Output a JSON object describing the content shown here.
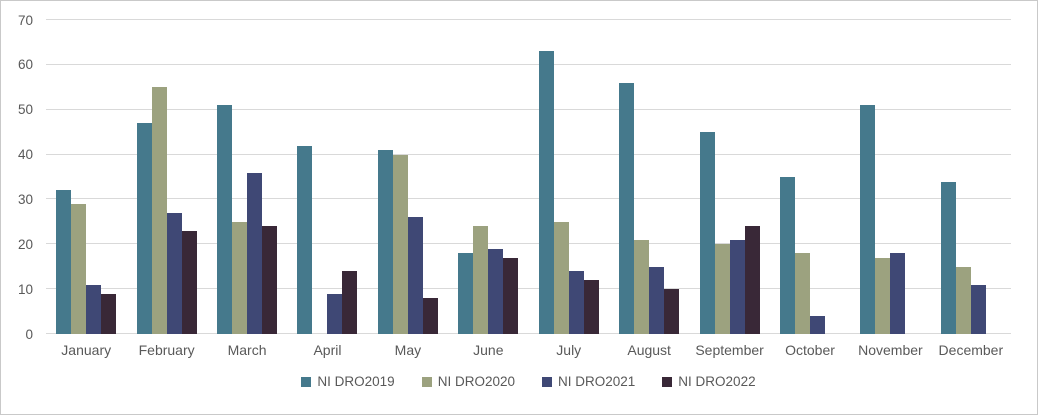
{
  "chart_data": {
    "type": "bar",
    "title": "",
    "xlabel": "",
    "ylabel": "",
    "categories": [
      "January",
      "February",
      "March",
      "April",
      "May",
      "June",
      "July",
      "August",
      "September",
      "October",
      "November",
      "December"
    ],
    "series": [
      {
        "name": "NI DRO2019",
        "color": "#45798C",
        "values": [
          32,
          47,
          51,
          42,
          41,
          18,
          63,
          56,
          45,
          35,
          51,
          34
        ]
      },
      {
        "name": "NI DRO2020",
        "color": "#9CA27F",
        "values": [
          29,
          55,
          25,
          0,
          40,
          24,
          25,
          21,
          20,
          18,
          17,
          15
        ]
      },
      {
        "name": "NI DRO2021",
        "color": "#3F4875",
        "values": [
          11,
          27,
          36,
          9,
          26,
          19,
          14,
          15,
          21,
          4,
          18,
          11
        ]
      },
      {
        "name": "NI DRO2022",
        "color": "#392837",
        "values": [
          9,
          23,
          24,
          14,
          8,
          17,
          12,
          10,
          24,
          0,
          0,
          0
        ]
      }
    ],
    "ylim": [
      0,
      70
    ],
    "yticks": [
      0,
      10,
      20,
      30,
      40,
      50,
      60,
      70
    ],
    "grid": true,
    "legend_position": "bottom",
    "colors": {
      "axis_text": "#595959",
      "gridline": "#D9D9D9",
      "chart_border": "#C9C9C9",
      "background": "#FFFFFF"
    }
  }
}
